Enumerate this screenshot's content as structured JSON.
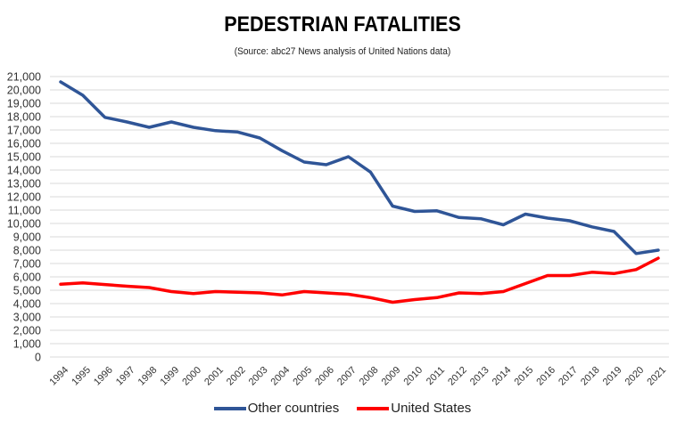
{
  "chart_data": {
    "type": "line",
    "title": "PEDESTRIAN FATALITIES",
    "subtitle": "(Source: abc27 News analysis of United Nations data)",
    "xlabel": "",
    "ylabel": "",
    "ylim": [
      0,
      21000
    ],
    "ytick_step": 1000,
    "yticks": [
      "0",
      "1,000",
      "2,000",
      "3,000",
      "4,000",
      "5,000",
      "6,000",
      "7,000",
      "8,000",
      "9,000",
      "10,000",
      "11,000",
      "12,000",
      "13,000",
      "14,000",
      "15,000",
      "16,000",
      "17,000",
      "18,000",
      "19,000",
      "20,000",
      "21,000"
    ],
    "grid": true,
    "legend_position": "bottom",
    "x": [
      "1994",
      "1995",
      "1996",
      "1997",
      "1998",
      "1999",
      "2000",
      "2001",
      "2002",
      "2003",
      "2004",
      "2005",
      "2006",
      "2007",
      "2008",
      "2009",
      "2010",
      "2011",
      "2012",
      "2013",
      "2014",
      "2015",
      "2016",
      "2017",
      "2018",
      "2019",
      "2020",
      "2021"
    ],
    "series": [
      {
        "name": "Other countries",
        "color": "#2f5597",
        "values": [
          20600,
          19600,
          17950,
          17600,
          17200,
          17600,
          17200,
          16950,
          16850,
          16400,
          15450,
          14600,
          14400,
          15000,
          13850,
          11300,
          10900,
          10950,
          10450,
          10350,
          9900,
          10700,
          10400,
          10200,
          9750,
          9400,
          7750,
          8000
        ]
      },
      {
        "name": "United States",
        "color": "#ff0000",
        "values": [
          5450,
          5550,
          5430,
          5300,
          5200,
          4900,
          4750,
          4900,
          4850,
          4800,
          4650,
          4900,
          4800,
          4700,
          4450,
          4100,
          4300,
          4450,
          4800,
          4750,
          4900,
          5500,
          6100,
          6100,
          6350,
          6250,
          6550,
          7400
        ]
      }
    ]
  }
}
